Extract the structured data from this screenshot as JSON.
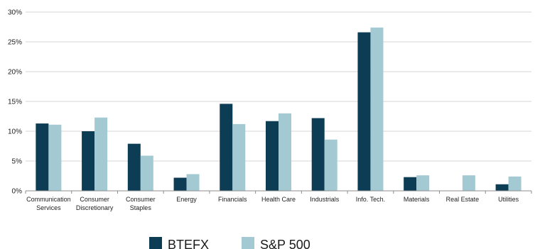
{
  "chart_data": {
    "type": "bar",
    "title": "",
    "xlabel": "",
    "ylabel": "",
    "ylim": [
      0,
      30
    ],
    "y_ticks": [
      0,
      5,
      10,
      15,
      20,
      25,
      30
    ],
    "y_tick_labels": [
      "0%",
      "5%",
      "10%",
      "15%",
      "20%",
      "25%",
      "30%"
    ],
    "grid": "horizontal",
    "legend_position": "bottom",
    "categories": [
      [
        "Communication",
        "Services"
      ],
      [
        "Consumer",
        "Discretionary"
      ],
      [
        "Consumer",
        "Staples"
      ],
      [
        "Energy"
      ],
      [
        "Financials"
      ],
      [
        "Health Care"
      ],
      [
        "Industrials"
      ],
      [
        "Info. Tech."
      ],
      [
        "Materials"
      ],
      [
        "Real Estate"
      ],
      [
        "Utilities"
      ]
    ],
    "series": [
      {
        "name": "BTEFX",
        "color": "#0d3c55",
        "values": [
          11.3,
          10.0,
          7.9,
          2.2,
          14.6,
          11.7,
          12.2,
          26.6,
          2.3,
          0.0,
          1.1
        ]
      },
      {
        "name": "S&P 500",
        "color": "#a3cad3",
        "values": [
          11.1,
          12.3,
          5.9,
          2.8,
          11.2,
          13.0,
          8.6,
          27.4,
          2.6,
          2.6,
          2.4
        ]
      }
    ]
  }
}
